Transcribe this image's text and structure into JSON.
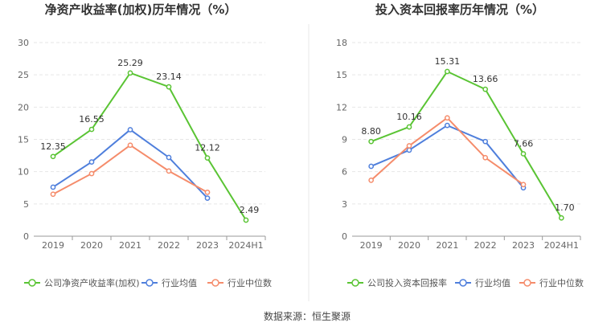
{
  "source_text": "数据来源：恒生聚源",
  "chart_data": [
    {
      "type": "line",
      "title": "净资产收益率(加权)历年情况（%）",
      "categories": [
        "2019",
        "2020",
        "2021",
        "2022",
        "2023",
        "2024H1"
      ],
      "ylim": [
        0,
        30
      ],
      "yticks": [
        0,
        5,
        10,
        15,
        20,
        25,
        30
      ],
      "grid": true,
      "legend_position": "bottom",
      "series": [
        {
          "name": "公司净资产收益率(加权)",
          "color": "#5ac434",
          "values": [
            12.35,
            16.55,
            25.29,
            23.14,
            12.12,
            2.49
          ],
          "labels": [
            "12.35",
            "16.55",
            "25.29",
            "23.14",
            "12.12",
            "2.49"
          ]
        },
        {
          "name": "行业均值",
          "color": "#4f7fdc",
          "values": [
            7.6,
            11.5,
            16.5,
            12.2,
            5.9,
            null
          ]
        },
        {
          "name": "行业中位数",
          "color": "#f58c6b",
          "values": [
            6.5,
            9.7,
            14.1,
            10.1,
            6.8,
            null
          ]
        }
      ]
    },
    {
      "type": "line",
      "title": "投入资本回报率历年情况（%）",
      "categories": [
        "2019",
        "2020",
        "2021",
        "2022",
        "2023",
        "2024H1"
      ],
      "ylim": [
        0,
        18
      ],
      "yticks": [
        0,
        3,
        6,
        9,
        12,
        15,
        18
      ],
      "grid": true,
      "legend_position": "bottom",
      "series": [
        {
          "name": "公司投入资本回报率",
          "color": "#5ac434",
          "values": [
            8.8,
            10.16,
            15.31,
            13.66,
            7.66,
            1.7
          ],
          "labels": [
            "8.80",
            "10.16",
            "15.31",
            "13.66",
            "7.66",
            "1.70"
          ]
        },
        {
          "name": "行业均值",
          "color": "#4f7fdc",
          "values": [
            6.5,
            8.0,
            10.3,
            8.8,
            4.5,
            null
          ]
        },
        {
          "name": "行业中位数",
          "color": "#f58c6b",
          "values": [
            5.2,
            8.4,
            11.0,
            7.3,
            4.8,
            null
          ]
        }
      ]
    }
  ]
}
